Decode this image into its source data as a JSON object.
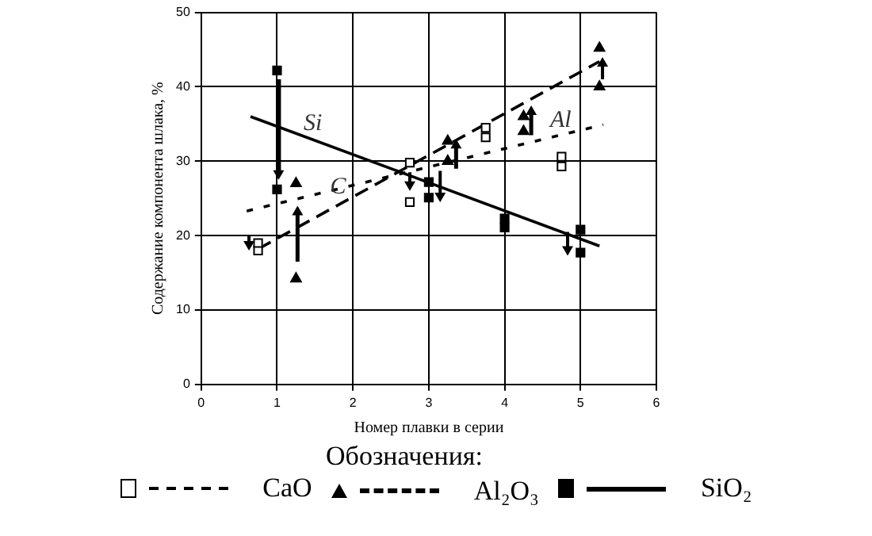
{
  "chart_data": {
    "type": "scatter",
    "xlabel": "Номер плавки в серии",
    "ylabel": "Содержание компонента шлака, %",
    "legend_title": "Обозначения:",
    "legend": "bottom",
    "grid": true,
    "xlim": [
      0,
      6
    ],
    "xticks": [
      0,
      1,
      2,
      3,
      4,
      5,
      6
    ],
    "ylim": [
      0,
      50
    ],
    "yticks": [
      0,
      10,
      20,
      30,
      40,
      50
    ],
    "series": [
      {
        "name": "CaO",
        "marker": "square",
        "color": "#ffffff",
        "x": [
          0.75,
          0.75,
          2.75,
          2.75,
          3.75,
          3.75,
          4.75,
          4.75
        ],
        "values": [
          18,
          19,
          29.8,
          24.5,
          34.5,
          33.2,
          30.6,
          29.3
        ]
      },
      {
        "name": "Al₂O₃",
        "marker": "triangle",
        "color": "#000000",
        "x": [
          1.25,
          1.25,
          3.25,
          3.25,
          4.25,
          4.25,
          5.25,
          5.25
        ],
        "values": [
          27,
          14.2,
          32.7,
          30,
          36,
          34,
          45.2,
          40
        ]
      },
      {
        "name": "SiO₂",
        "marker": "square",
        "color": "#000000",
        "x": [
          1,
          1,
          3,
          3,
          4,
          4,
          5,
          5
        ],
        "values": [
          42.2,
          26.2,
          27.2,
          25.1,
          22.3,
          21.1,
          20.8,
          17.7
        ]
      },
      {
        "type": "line",
        "line_style": "dotted",
        "color": "#000000",
        "x": [
          0.6,
          5.3
        ],
        "values": [
          23.3,
          34.9
        ]
      },
      {
        "type": "line",
        "line_style": "dashed",
        "color": "#000000",
        "x": [
          0.75,
          5.25
        ],
        "values": [
          18.2,
          43.4
        ]
      },
      {
        "type": "line",
        "line_style": "solid",
        "color": "#000000",
        "x": [
          0.65,
          5.25
        ],
        "values": [
          36,
          18.6
        ]
      }
    ],
    "annotations": [
      "Si",
      "C",
      "Al"
    ]
  }
}
